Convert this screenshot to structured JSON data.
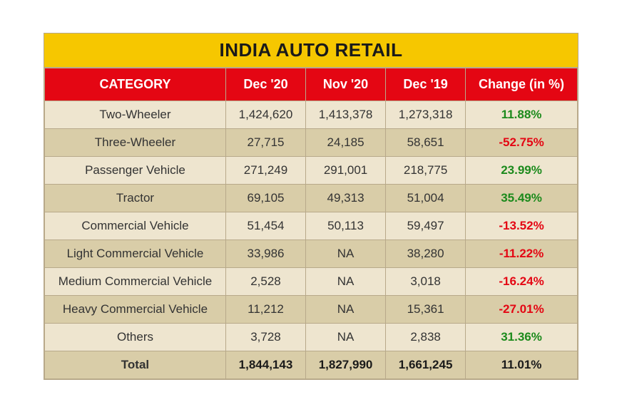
{
  "title": "INDIA AUTO RETAIL",
  "columns": [
    "CATEGORY",
    "Dec '20",
    "Nov '20",
    "Dec '19",
    "Change (in %)"
  ],
  "rows": [
    {
      "category": "Two-Wheeler",
      "dec20": "1,424,620",
      "nov20": "1,413,378",
      "dec19": "1,273,318",
      "change": "11.88%",
      "dir": "pos"
    },
    {
      "category": "Three-Wheeler",
      "dec20": "27,715",
      "nov20": "24,185",
      "dec19": "58,651",
      "change": "-52.75%",
      "dir": "neg"
    },
    {
      "category": "Passenger Vehicle",
      "dec20": "271,249",
      "nov20": "291,001",
      "dec19": "218,775",
      "change": "23.99%",
      "dir": "pos"
    },
    {
      "category": "Tractor",
      "dec20": "69,105",
      "nov20": "49,313",
      "dec19": "51,004",
      "change": "35.49%",
      "dir": "pos"
    },
    {
      "category": "Commercial Vehicle",
      "dec20": "51,454",
      "nov20": "50,113",
      "dec19": "59,497",
      "change": "-13.52%",
      "dir": "neg"
    },
    {
      "category": "Light Commercial Vehicle",
      "dec20": "33,986",
      "nov20": "NA",
      "dec19": "38,280",
      "change": "-11.22%",
      "dir": "neg"
    },
    {
      "category": "Medium Commercial Vehicle",
      "dec20": "2,528",
      "nov20": "NA",
      "dec19": "3,018",
      "change": "-16.24%",
      "dir": "neg"
    },
    {
      "category": "Heavy Commercial Vehicle",
      "dec20": "11,212",
      "nov20": "NA",
      "dec19": "15,361",
      "change": "-27.01%",
      "dir": "neg"
    },
    {
      "category": "Others",
      "dec20": "3,728",
      "nov20": "NA",
      "dec19": "2,838",
      "change": "31.36%",
      "dir": "pos"
    }
  ],
  "total": {
    "label": "Total",
    "dec20": "1,844,143",
    "nov20": "1,827,990",
    "dec19": "1,661,245",
    "change": "11.01%",
    "dir": "pos"
  },
  "style": {
    "title_bg": "#f6c700",
    "header_bg": "#e40613",
    "header_fg": "#ffffff",
    "row_odd_bg": "#eee5cf",
    "row_even_bg": "#d9cda8",
    "border_color": "#b8a98a",
    "pos_color": "#1c8a1c",
    "neg_color": "#e40613",
    "title_fontsize": 26,
    "header_fontsize": 18,
    "cell_fontsize": 17
  }
}
